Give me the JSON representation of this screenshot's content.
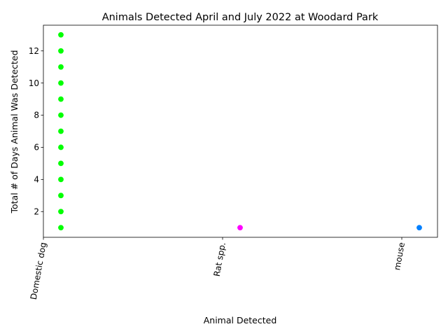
{
  "chart_data": {
    "type": "scatter",
    "title": "Animals Detected April and July 2022 at Woodard Park",
    "xlabel": "Animal Detected",
    "ylabel": "Total # of Days Animal Was Detected",
    "categories": [
      "Domestic dog",
      "Rat spp.",
      "mouse"
    ],
    "ylim": [
      0.4,
      13.6
    ],
    "yticks": [
      2,
      4,
      6,
      8,
      10,
      12
    ],
    "grid": false,
    "legend": "none",
    "series": [
      {
        "category": "Domestic dog",
        "color": "#00ff00",
        "values": [
          1,
          2,
          3,
          4,
          5,
          6,
          7,
          8,
          9,
          10,
          11,
          12,
          13
        ]
      },
      {
        "category": "Rat spp.",
        "color": "#ff00ff",
        "values": [
          1
        ]
      },
      {
        "category": "mouse",
        "color": "#0080ff",
        "values": [
          1
        ]
      }
    ]
  }
}
